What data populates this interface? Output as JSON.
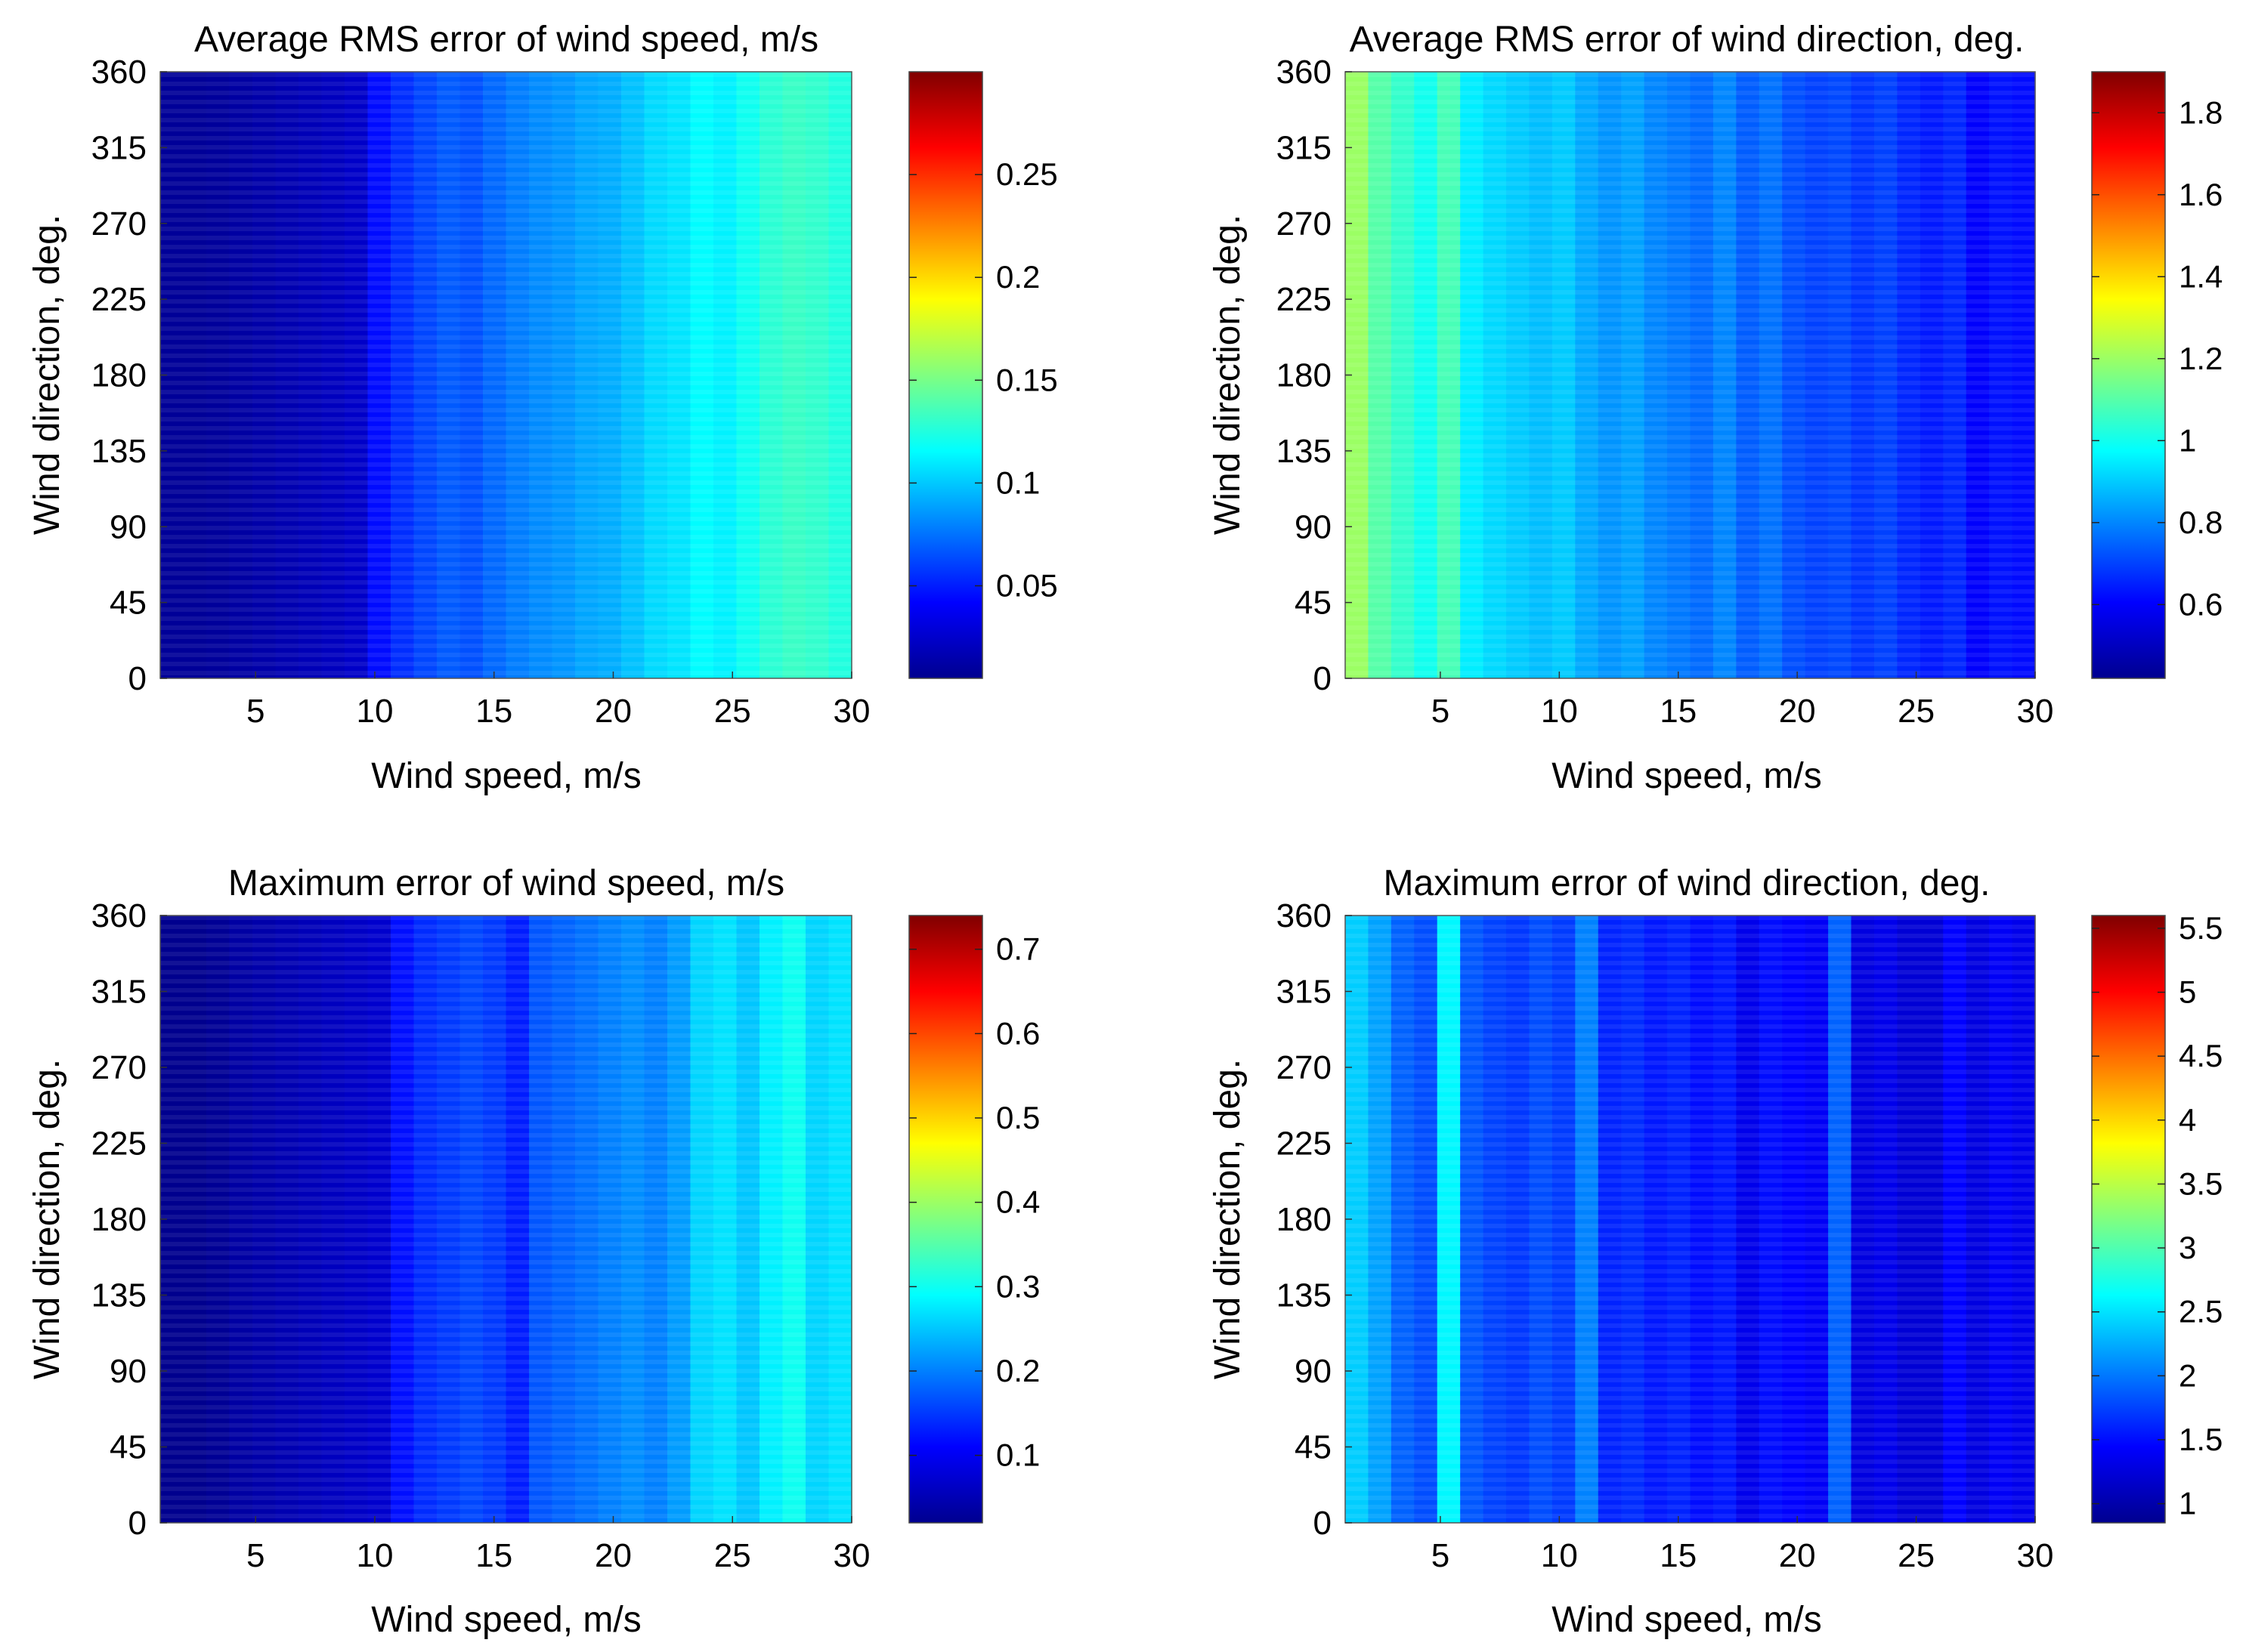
{
  "chart_data": [
    {
      "type": "heatmap",
      "title": "Average RMS error of wind speed, m/s",
      "xlabel": "Wind speed, m/s",
      "ylabel": "Wind direction, deg.",
      "xlim": [
        1,
        30
      ],
      "ylim": [
        0,
        360
      ],
      "xticks": [
        5,
        10,
        15,
        20,
        25,
        30
      ],
      "yticks": [
        0,
        45,
        90,
        135,
        180,
        225,
        270,
        315,
        360
      ],
      "colorbar": {
        "range": [
          0.005,
          0.3
        ],
        "ticks": [
          0.05,
          0.1,
          0.15,
          0.2,
          0.25
        ],
        "tick_labels": [
          "0.05",
          "0.1",
          "0.15",
          "0.2",
          "0.25"
        ]
      },
      "column_values": [
        0.012,
        0.012,
        0.013,
        0.015,
        0.017,
        0.019,
        0.021,
        0.023,
        0.026,
        0.045,
        0.055,
        0.062,
        0.068,
        0.065,
        0.072,
        0.078,
        0.082,
        0.085,
        0.09,
        0.092,
        0.098,
        0.105,
        0.108,
        0.115,
        0.112,
        0.12,
        0.128,
        0.132,
        0.13,
        0.125
      ]
    },
    {
      "type": "heatmap",
      "title": "Average RMS error of wind direction, deg.",
      "xlabel": "Wind speed, m/s",
      "ylabel": "Wind direction, deg.",
      "xlim": [
        1,
        30
      ],
      "ylim": [
        0,
        360
      ],
      "xticks": [
        5,
        10,
        15,
        20,
        25,
        30
      ],
      "yticks": [
        0,
        45,
        90,
        135,
        180,
        225,
        270,
        315,
        360
      ],
      "colorbar": {
        "range": [
          0.42,
          1.9
        ],
        "ticks": [
          0.6,
          0.8,
          1,
          1.2,
          1.4,
          1.6,
          1.8
        ],
        "tick_labels": [
          "0.6",
          "0.8",
          "1",
          "1.2",
          "1.4",
          "1.6",
          "1.8"
        ]
      },
      "column_values": [
        1.2,
        1.1,
        1.05,
        1.0,
        1.08,
        0.95,
        0.92,
        0.9,
        0.88,
        0.9,
        0.85,
        0.82,
        0.84,
        0.8,
        0.78,
        0.76,
        0.8,
        0.74,
        0.77,
        0.72,
        0.7,
        0.71,
        0.68,
        0.7,
        0.66,
        0.64,
        0.66,
        0.6,
        0.63,
        0.62
      ]
    },
    {
      "type": "heatmap",
      "title": "Maximum error of wind speed, m/s",
      "xlabel": "Wind speed, m/s",
      "ylabel": "Wind direction, deg.",
      "xlim": [
        1,
        30
      ],
      "ylim": [
        0,
        360
      ],
      "xticks": [
        5,
        10,
        15,
        20,
        25,
        30
      ],
      "yticks": [
        0,
        45,
        90,
        135,
        180,
        225,
        270,
        315,
        360
      ],
      "colorbar": {
        "range": [
          0.02,
          0.74
        ],
        "ticks": [
          0.1,
          0.2,
          0.3,
          0.4,
          0.5,
          0.6,
          0.7
        ],
        "tick_labels": [
          "0.1",
          "0.2",
          "0.3",
          "0.4",
          "0.5",
          "0.6",
          "0.7"
        ]
      },
      "column_values": [
        0.03,
        0.03,
        0.035,
        0.045,
        0.05,
        0.055,
        0.06,
        0.065,
        0.07,
        0.075,
        0.12,
        0.14,
        0.15,
        0.16,
        0.15,
        0.13,
        0.17,
        0.18,
        0.19,
        0.2,
        0.21,
        0.2,
        0.22,
        0.26,
        0.27,
        0.25,
        0.28,
        0.3,
        0.26,
        0.27
      ]
    },
    {
      "type": "heatmap",
      "title": "Maximum error of wind direction, deg.",
      "xlabel": "Wind speed, m/s",
      "ylabel": "Wind direction, deg.",
      "xlim": [
        1,
        30
      ],
      "ylim": [
        0,
        360
      ],
      "xticks": [
        5,
        10,
        15,
        20,
        25,
        30
      ],
      "yticks": [
        0,
        45,
        90,
        135,
        180,
        225,
        270,
        315,
        360
      ],
      "colorbar": {
        "range": [
          0.85,
          5.6
        ],
        "ticks": [
          1,
          1.5,
          2,
          2.5,
          3,
          3.5,
          4,
          4.5,
          5,
          5.5
        ],
        "tick_labels": [
          "1",
          "1.5",
          "2",
          "2.5",
          "3",
          "3.5",
          "4",
          "4.5",
          "5",
          "5.5"
        ]
      },
      "column_values": [
        2.4,
        2.2,
        1.9,
        1.8,
        2.6,
        1.85,
        1.75,
        1.7,
        1.8,
        1.72,
        2.05,
        1.6,
        1.65,
        1.55,
        1.6,
        1.5,
        1.55,
        1.35,
        1.5,
        1.45,
        1.4,
        1.9,
        1.3,
        1.35,
        1.25,
        1.25,
        1.45,
        1.3,
        1.4,
        1.35
      ]
    }
  ]
}
